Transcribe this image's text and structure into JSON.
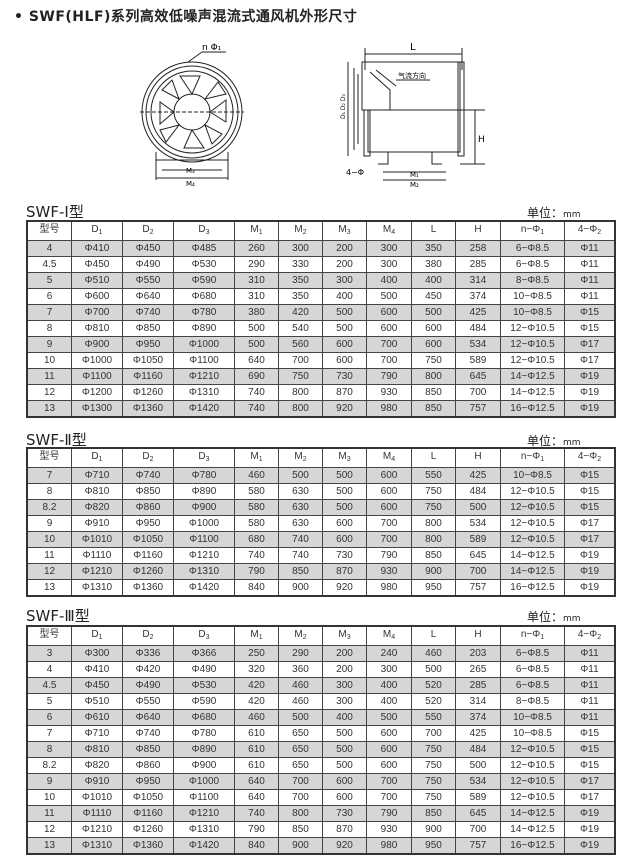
{
  "title": "• SWF(HLF)系列高效低噪声混流式通风机外形尺寸",
  "diagram": {
    "front_labels": {
      "n_phi1": "n  Φ₁",
      "m3": "M₃",
      "m4": "M₄"
    },
    "side_labels": {
      "L": "L",
      "H": "H",
      "airflow": "气流方向",
      "four_phi": "4−Φ",
      "m1": "M₁",
      "m2": "M₂",
      "d": "D₁ D₂ D₃"
    }
  },
  "unit_label": "单位：",
  "unit_value": "mm",
  "columns": [
    {
      "main": "型号",
      "sub": ""
    },
    {
      "main": "D",
      "sub": "1"
    },
    {
      "main": "D",
      "sub": "2"
    },
    {
      "main": "D",
      "sub": "3"
    },
    {
      "main": "M",
      "sub": "1"
    },
    {
      "main": "M",
      "sub": "2"
    },
    {
      "main": "M",
      "sub": "3"
    },
    {
      "main": "M",
      "sub": "4"
    },
    {
      "main": "L",
      "sub": ""
    },
    {
      "main": "H",
      "sub": ""
    },
    {
      "main": "n−Φ",
      "sub": "1"
    },
    {
      "main": "4−Φ",
      "sub": "2"
    }
  ],
  "tables": [
    {
      "caption": "SWF-Ⅰ型",
      "rows": [
        [
          "4",
          "Φ410",
          "Φ450",
          "Φ485",
          "260",
          "300",
          "200",
          "300",
          "350",
          "258",
          "6−Φ8.5",
          "Φ11"
        ],
        [
          "4.5",
          "Φ450",
          "Φ490",
          "Φ530",
          "290",
          "330",
          "200",
          "300",
          "380",
          "285",
          "6−Φ8.5",
          "Φ11"
        ],
        [
          "5",
          "Φ510",
          "Φ550",
          "Φ590",
          "310",
          "350",
          "300",
          "400",
          "400",
          "314",
          "8−Φ8.5",
          "Φ11"
        ],
        [
          "6",
          "Φ600",
          "Φ640",
          "Φ680",
          "310",
          "350",
          "400",
          "500",
          "450",
          "374",
          "10−Φ8.5",
          "Φ11"
        ],
        [
          "7",
          "Φ700",
          "Φ740",
          "Φ780",
          "380",
          "420",
          "500",
          "600",
          "500",
          "425",
          "10−Φ8.5",
          "Φ15"
        ],
        [
          "8",
          "Φ810",
          "Φ850",
          "Φ890",
          "500",
          "540",
          "500",
          "600",
          "600",
          "484",
          "12−Φ10.5",
          "Φ15"
        ],
        [
          "9",
          "Φ900",
          "Φ950",
          "Φ1000",
          "500",
          "560",
          "600",
          "700",
          "600",
          "534",
          "12−Φ10.5",
          "Φ17"
        ],
        [
          "10",
          "Φ1000",
          "Φ1050",
          "Φ1100",
          "640",
          "700",
          "600",
          "700",
          "750",
          "589",
          "12−Φ10.5",
          "Φ17"
        ],
        [
          "11",
          "Φ1100",
          "Φ1160",
          "Φ1210",
          "690",
          "750",
          "730",
          "790",
          "800",
          "645",
          "14−Φ12.5",
          "Φ19"
        ],
        [
          "12",
          "Φ1200",
          "Φ1260",
          "Φ1310",
          "740",
          "800",
          "870",
          "930",
          "850",
          "700",
          "14−Φ12.5",
          "Φ19"
        ],
        [
          "13",
          "Φ1300",
          "Φ1360",
          "Φ1420",
          "740",
          "800",
          "920",
          "980",
          "850",
          "757",
          "16−Φ12.5",
          "Φ19"
        ]
      ]
    },
    {
      "caption": "SWF-Ⅱ型",
      "rows": [
        [
          "7",
          "Φ710",
          "Φ740",
          "Φ780",
          "460",
          "500",
          "500",
          "600",
          "550",
          "425",
          "10−Φ8.5",
          "Φ15"
        ],
        [
          "8",
          "Φ810",
          "Φ850",
          "Φ890",
          "580",
          "630",
          "500",
          "600",
          "750",
          "484",
          "12−Φ10.5",
          "Φ15"
        ],
        [
          "8.2",
          "Φ820",
          "Φ860",
          "Φ900",
          "580",
          "630",
          "500",
          "600",
          "750",
          "500",
          "12−Φ10.5",
          "Φ15"
        ],
        [
          "9",
          "Φ910",
          "Φ950",
          "Φ1000",
          "580",
          "630",
          "600",
          "700",
          "800",
          "534",
          "12−Φ10.5",
          "Φ17"
        ],
        [
          "10",
          "Φ1010",
          "Φ1050",
          "Φ1100",
          "680",
          "740",
          "600",
          "700",
          "800",
          "589",
          "12−Φ10.5",
          "Φ17"
        ],
        [
          "11",
          "Φ1110",
          "Φ1160",
          "Φ1210",
          "740",
          "740",
          "730",
          "790",
          "850",
          "645",
          "14−Φ12.5",
          "Φ19"
        ],
        [
          "12",
          "Φ1210",
          "Φ1260",
          "Φ1310",
          "790",
          "850",
          "870",
          "930",
          "900",
          "700",
          "14−Φ12.5",
          "Φ19"
        ],
        [
          "13",
          "Φ1310",
          "Φ1360",
          "Φ1420",
          "840",
          "900",
          "920",
          "980",
          "950",
          "757",
          "16−Φ12.5",
          "Φ19"
        ]
      ]
    },
    {
      "caption": "SWF-Ⅲ型",
      "rows": [
        [
          "3",
          "Φ300",
          "Φ336",
          "Φ366",
          "250",
          "290",
          "200",
          "240",
          "460",
          "203",
          "6−Φ8.5",
          "Φ11"
        ],
        [
          "4",
          "Φ410",
          "Φ420",
          "Φ490",
          "320",
          "360",
          "200",
          "300",
          "500",
          "265",
          "6−Φ8.5",
          "Φ11"
        ],
        [
          "4.5",
          "Φ450",
          "Φ490",
          "Φ530",
          "420",
          "460",
          "300",
          "400",
          "520",
          "285",
          "6−Φ8.5",
          "Φ11"
        ],
        [
          "5",
          "Φ510",
          "Φ550",
          "Φ590",
          "420",
          "460",
          "300",
          "400",
          "520",
          "314",
          "8−Φ8.5",
          "Φ11"
        ],
        [
          "6",
          "Φ610",
          "Φ640",
          "Φ680",
          "460",
          "500",
          "400",
          "500",
          "550",
          "374",
          "10−Φ8.5",
          "Φ11"
        ],
        [
          "7",
          "Φ710",
          "Φ740",
          "Φ780",
          "610",
          "650",
          "500",
          "600",
          "700",
          "425",
          "10−Φ8.5",
          "Φ15"
        ],
        [
          "8",
          "Φ810",
          "Φ850",
          "Φ890",
          "610",
          "650",
          "500",
          "600",
          "750",
          "484",
          "12−Φ10.5",
          "Φ15"
        ],
        [
          "8.2",
          "Φ820",
          "Φ860",
          "Φ900",
          "610",
          "650",
          "500",
          "600",
          "750",
          "500",
          "12−Φ10.5",
          "Φ15"
        ],
        [
          "9",
          "Φ910",
          "Φ950",
          "Φ1000",
          "640",
          "700",
          "600",
          "700",
          "750",
          "534",
          "12−Φ10.5",
          "Φ17"
        ],
        [
          "10",
          "Φ1010",
          "Φ1050",
          "Φ1100",
          "640",
          "700",
          "600",
          "700",
          "750",
          "589",
          "12−Φ10.5",
          "Φ17"
        ],
        [
          "11",
          "Φ1110",
          "Φ1160",
          "Φ1210",
          "740",
          "800",
          "730",
          "790",
          "850",
          "645",
          "14−Φ12.5",
          "Φ19"
        ],
        [
          "12",
          "Φ1210",
          "Φ1260",
          "Φ1310",
          "790",
          "850",
          "870",
          "930",
          "900",
          "700",
          "14−Φ12.5",
          "Φ19"
        ],
        [
          "13",
          "Φ1310",
          "Φ1360",
          "Φ1420",
          "840",
          "900",
          "920",
          "980",
          "950",
          "757",
          "16−Φ12.5",
          "Φ19"
        ]
      ]
    }
  ]
}
